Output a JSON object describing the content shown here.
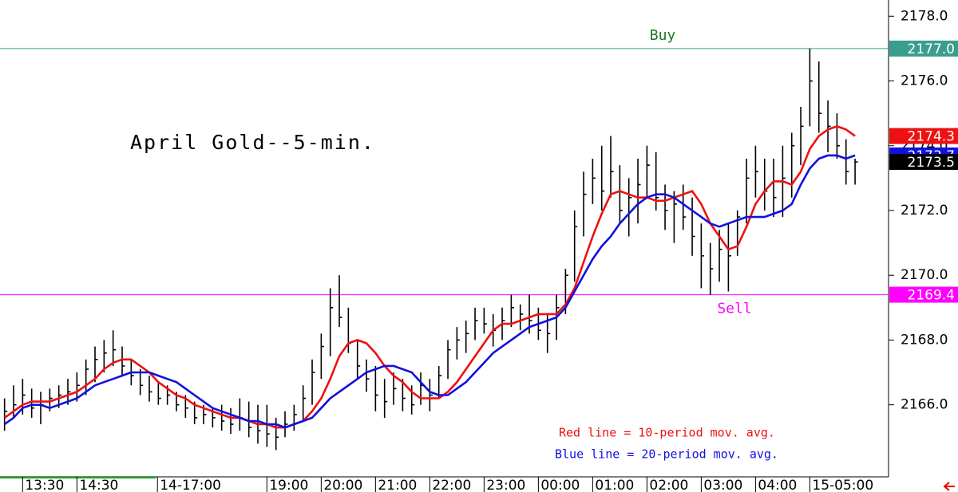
{
  "chart_data": {
    "type": "ohlc",
    "title": "April Gold--5-min.",
    "xlim": [
      0,
      98.2
    ],
    "xticks": [
      {
        "value": 2.5,
        "label": "13:30"
      },
      {
        "value": 8.5,
        "label": "14:30"
      },
      {
        "value": 17.4,
        "label": "14-17:00"
      },
      {
        "value": 29.5,
        "label": "19:00"
      },
      {
        "value": 35.5,
        "label": "20:00"
      },
      {
        "value": 41.5,
        "label": "21:00"
      },
      {
        "value": 47.5,
        "label": "22:00"
      },
      {
        "value": 53.5,
        "label": "23:00"
      },
      {
        "value": 59.5,
        "label": "00:00"
      },
      {
        "value": 65.5,
        "label": "01:00"
      },
      {
        "value": 71.5,
        "label": "02:00"
      },
      {
        "value": 77.5,
        "label": "03:00"
      },
      {
        "value": 83.5,
        "label": "04:00"
      },
      {
        "value": 89.5,
        "label": "15-05:00"
      }
    ],
    "ylim": [
      2163.8,
      2178.5
    ],
    "yticks": [
      {
        "value": 2166,
        "label": "2166.0"
      },
      {
        "value": 2168,
        "label": "2168.0"
      },
      {
        "value": 2170,
        "label": "2170.0"
      },
      {
        "value": 2172,
        "label": "2172.0"
      },
      {
        "value": 2174,
        "label": "2174.0"
      },
      {
        "value": 2176,
        "label": "2176.0"
      },
      {
        "value": 2178,
        "label": "2178.0"
      }
    ],
    "color": "#000000",
    "high": [
      2166.2,
      2166.6,
      2166.8,
      2166.5,
      2166.4,
      2166.5,
      2166.6,
      2166.8,
      2167.0,
      2167.4,
      2167.8,
      2168.0,
      2168.3,
      2167.8,
      2167.4,
      2167.1,
      2166.9,
      2166.7,
      2166.6,
      2166.4,
      2166.3,
      2166.1,
      2166.0,
      2165.9,
      2166.0,
      2165.9,
      2166.2,
      2166.1,
      2166.0,
      2166.0,
      2165.6,
      2165.8,
      2166.0,
      2166.6,
      2167.4,
      2168.2,
      2169.6,
      2170.0,
      2169.0,
      2168.0,
      2167.4,
      2167.2,
      2166.8,
      2167.0,
      2166.8,
      2166.6,
      2167.0,
      2166.8,
      2167.2,
      2168.0,
      2168.4,
      2168.6,
      2169.0,
      2169.0,
      2168.8,
      2169.0,
      2169.4,
      2169.1,
      2169.4,
      2169.0,
      2168.8,
      2169.4,
      2170.2,
      2172.0,
      2173.2,
      2173.6,
      2174.0,
      2174.3,
      2173.4,
      2173.0,
      2173.6,
      2174.0,
      2173.8,
      2172.8,
      2172.6,
      2172.8,
      2172.4,
      2171.6,
      2171.0,
      2171.4,
      2171.6,
      2172.0,
      2173.6,
      2174.0,
      2173.6,
      2173.6,
      2174.0,
      2174.4,
      2175.2,
      2177.0,
      2176.6,
      2175.4,
      2175.0,
      2174.2,
      2173.6
    ],
    "low": [
      2165.2,
      2165.6,
      2165.7,
      2165.6,
      2165.4,
      2165.8,
      2165.9,
      2166.0,
      2166.1,
      2166.3,
      2166.7,
      2167.0,
      2167.2,
      2166.9,
      2166.6,
      2166.3,
      2166.1,
      2166.0,
      2166.0,
      2165.8,
      2165.6,
      2165.4,
      2165.4,
      2165.3,
      2165.2,
      2165.1,
      2165.2,
      2165.0,
      2164.8,
      2164.7,
      2164.6,
      2165.0,
      2165.2,
      2165.5,
      2166.0,
      2166.8,
      2167.5,
      2168.4,
      2167.6,
      2166.8,
      2166.4,
      2165.8,
      2165.6,
      2166.0,
      2165.8,
      2165.7,
      2166.0,
      2165.8,
      2166.2,
      2166.8,
      2167.4,
      2167.6,
      2168.0,
      2168.2,
      2167.8,
      2168.0,
      2168.4,
      2168.3,
      2168.2,
      2168.0,
      2167.6,
      2168.0,
      2168.8,
      2169.8,
      2171.2,
      2172.2,
      2172.0,
      2172.4,
      2171.6,
      2171.2,
      2171.6,
      2172.4,
      2172.0,
      2171.4,
      2171.0,
      2171.4,
      2170.6,
      2169.6,
      2169.4,
      2169.8,
      2169.5,
      2170.6,
      2171.6,
      2172.4,
      2172.0,
      2171.8,
      2171.8,
      2172.4,
      2173.4,
      2174.6,
      2174.4,
      2173.8,
      2173.6,
      2172.8,
      2172.8
    ],
    "close": [
      2165.8,
      2166.0,
      2166.3,
      2165.9,
      2166.0,
      2166.2,
      2166.3,
      2166.4,
      2166.6,
      2167.1,
      2167.4,
      2167.6,
      2167.7,
      2167.2,
      2166.9,
      2166.6,
      2166.4,
      2166.2,
      2166.3,
      2166.0,
      2165.9,
      2165.6,
      2165.7,
      2165.6,
      2165.5,
      2165.4,
      2165.6,
      2165.3,
      2165.2,
      2165.1,
      2165.0,
      2165.4,
      2165.7,
      2166.2,
      2167.0,
      2167.8,
      2169.0,
      2168.7,
      2167.9,
      2167.2,
      2166.8,
      2166.3,
      2166.1,
      2166.5,
      2166.2,
      2166.0,
      2166.6,
      2166.3,
      2166.9,
      2167.7,
      2168.0,
      2168.2,
      2168.6,
      2168.5,
      2168.3,
      2168.6,
      2169.0,
      2168.8,
      2168.6,
      2168.3,
      2168.2,
      2169.0,
      2170.0,
      2171.5,
      2172.5,
      2173.0,
      2172.6,
      2173.2,
      2172.0,
      2172.4,
      2172.8,
      2173.4,
      2172.4,
      2172.0,
      2172.2,
      2171.8,
      2171.2,
      2170.6,
      2170.2,
      2170.8,
      2170.6,
      2171.8,
      2173.0,
      2173.2,
      2172.6,
      2172.4,
      2173.0,
      2174.0,
      2174.6,
      2176.0,
      2175.0,
      2174.6,
      2174.0,
      2173.2,
      2173.5
    ],
    "close_label": "2173.5",
    "series": [
      {
        "name": "Red line = 10-period mov. avg.",
        "color": "#ee1111",
        "last_label": "2174.3",
        "values": [
          2165.6,
          2165.8,
          2166.0,
          2166.1,
          2166.1,
          2166.1,
          2166.2,
          2166.3,
          2166.4,
          2166.6,
          2166.8,
          2167.1,
          2167.3,
          2167.4,
          2167.4,
          2167.2,
          2167.0,
          2166.7,
          2166.5,
          2166.3,
          2166.2,
          2166.0,
          2165.9,
          2165.8,
          2165.7,
          2165.6,
          2165.6,
          2165.5,
          2165.4,
          2165.4,
          2165.3,
          2165.3,
          2165.4,
          2165.5,
          2165.8,
          2166.2,
          2166.8,
          2167.5,
          2167.9,
          2168.0,
          2167.9,
          2167.6,
          2167.2,
          2166.9,
          2166.7,
          2166.4,
          2166.2,
          2166.2,
          2166.2,
          2166.4,
          2166.7,
          2167.1,
          2167.5,
          2167.9,
          2168.3,
          2168.5,
          2168.5,
          2168.6,
          2168.7,
          2168.8,
          2168.8,
          2168.8,
          2169.1,
          2169.6,
          2170.4,
          2171.2,
          2171.9,
          2172.5,
          2172.6,
          2172.5,
          2172.4,
          2172.4,
          2172.3,
          2172.3,
          2172.4,
          2172.5,
          2172.6,
          2172.2,
          2171.6,
          2171.2,
          2170.8,
          2170.9,
          2171.5,
          2172.2,
          2172.6,
          2172.9,
          2172.9,
          2172.8,
          2173.2,
          2173.9,
          2174.3,
          2174.5,
          2174.6,
          2174.5,
          2174.3
        ]
      },
      {
        "name": "Blue line = 20-period mov. avg.",
        "color": "#1111dd",
        "last_label": "2173.7",
        "values": [
          2165.4,
          2165.6,
          2165.9,
          2166.0,
          2166.0,
          2165.9,
          2166.0,
          2166.1,
          2166.2,
          2166.4,
          2166.6,
          2166.7,
          2166.8,
          2166.9,
          2167.0,
          2167.0,
          2167.0,
          2166.9,
          2166.8,
          2166.7,
          2166.5,
          2166.3,
          2166.1,
          2165.9,
          2165.8,
          2165.7,
          2165.6,
          2165.5,
          2165.5,
          2165.4,
          2165.4,
          2165.3,
          2165.4,
          2165.5,
          2165.6,
          2165.9,
          2166.2,
          2166.4,
          2166.6,
          2166.8,
          2167.0,
          2167.1,
          2167.2,
          2167.2,
          2167.1,
          2167.0,
          2166.7,
          2166.4,
          2166.3,
          2166.3,
          2166.5,
          2166.7,
          2167.0,
          2167.3,
          2167.6,
          2167.8,
          2168.0,
          2168.2,
          2168.4,
          2168.5,
          2168.6,
          2168.7,
          2169.0,
          2169.5,
          2170.0,
          2170.5,
          2170.9,
          2171.2,
          2171.6,
          2171.9,
          2172.2,
          2172.4,
          2172.5,
          2172.5,
          2172.4,
          2172.2,
          2172.0,
          2171.8,
          2171.6,
          2171.5,
          2171.6,
          2171.7,
          2171.8,
          2171.8,
          2171.8,
          2171.9,
          2172.0,
          2172.2,
          2172.8,
          2173.3,
          2173.6,
          2173.7,
          2173.7,
          2173.6,
          2173.7
        ]
      }
    ],
    "levels": [
      {
        "label": "Buy",
        "value": 2177,
        "value_label": "2177.0",
        "color": "#3a9e8f",
        "text_color": "#1a7a1a"
      },
      {
        "label": "Sell",
        "value": 2169.4,
        "value_label": "2169.4",
        "color": "#ff00ff",
        "text_color": "#ff00ff"
      }
    ]
  }
}
